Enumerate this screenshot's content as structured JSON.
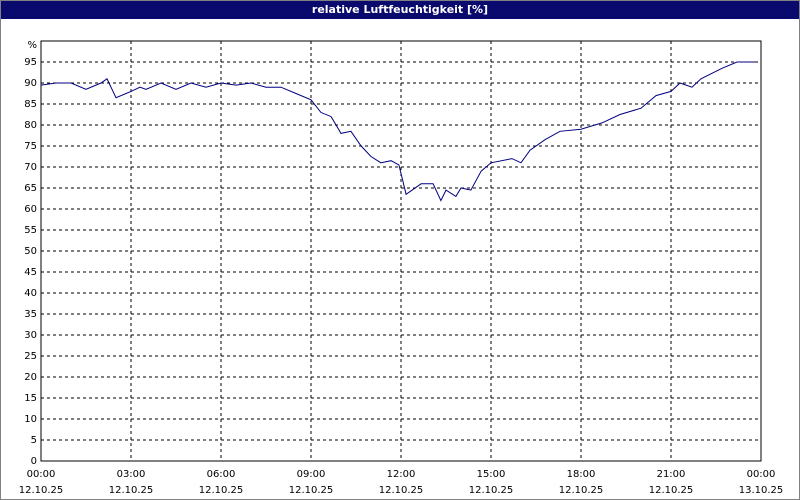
{
  "chart_data": {
    "type": "line",
    "title": "relative Luftfeuchtigkeit [%]",
    "y_label": "%",
    "x": [
      0,
      0.5,
      1,
      1.5,
      2,
      2.2,
      2.5,
      3,
      3.3,
      3.5,
      4,
      4.5,
      5,
      5.5,
      6,
      6.5,
      7,
      7.5,
      8,
      8.5,
      9,
      9.33,
      9.67,
      10,
      10.33,
      10.67,
      11,
      11.33,
      11.67,
      11.93,
      12.17,
      12.67,
      13.07,
      13.33,
      13.5,
      13.83,
      14,
      14.33,
      14.67,
      15,
      15.7,
      16,
      16.3,
      16.8,
      17.3,
      18,
      18.7,
      19.3,
      20,
      20.5,
      21,
      21.3,
      21.7,
      22,
      22.7,
      23.2,
      23.8
    ],
    "series": [
      {
        "name": "relative Luftfeuchtigkeit",
        "color": "#000080",
        "values": [
          89.5,
          90,
          90,
          88.5,
          90,
          91,
          86.5,
          88,
          89,
          88.5,
          90,
          88.5,
          90,
          89,
          90,
          89.5,
          90,
          89,
          89,
          87.5,
          86,
          83,
          82,
          78,
          78.5,
          75,
          72.5,
          71,
          71.5,
          70.5,
          63.5,
          66,
          66,
          62,
          64.5,
          63,
          65,
          64.5,
          69,
          71,
          72,
          71,
          74,
          76.5,
          78.5,
          79,
          80.5,
          82.5,
          84,
          87,
          88,
          90,
          89,
          91,
          93.5,
          95,
          95
        ]
      }
    ],
    "xlim": [
      0,
      24
    ],
    "xticks": [
      {
        "value": 0,
        "label": "00:00",
        "date": "12.10.25"
      },
      {
        "value": 3,
        "label": "03:00",
        "date": "12.10.25"
      },
      {
        "value": 6,
        "label": "06:00",
        "date": "12.10.25"
      },
      {
        "value": 9,
        "label": "09:00",
        "date": "12.10.25"
      },
      {
        "value": 12,
        "label": "12:00",
        "date": "12.10.25"
      },
      {
        "value": 15,
        "label": "15:00",
        "date": "12.10.25"
      },
      {
        "value": 18,
        "label": "18:00",
        "date": "12.10.25"
      },
      {
        "value": 21,
        "label": "21:00",
        "date": "12.10.25"
      },
      {
        "value": 24,
        "label": "00:00",
        "date": "13.10.25"
      }
    ],
    "ylim": [
      0,
      100
    ],
    "yticks": [
      0,
      5,
      10,
      15,
      20,
      25,
      30,
      35,
      40,
      45,
      50,
      55,
      60,
      65,
      70,
      75,
      80,
      85,
      90,
      95
    ],
    "grid": true
  }
}
